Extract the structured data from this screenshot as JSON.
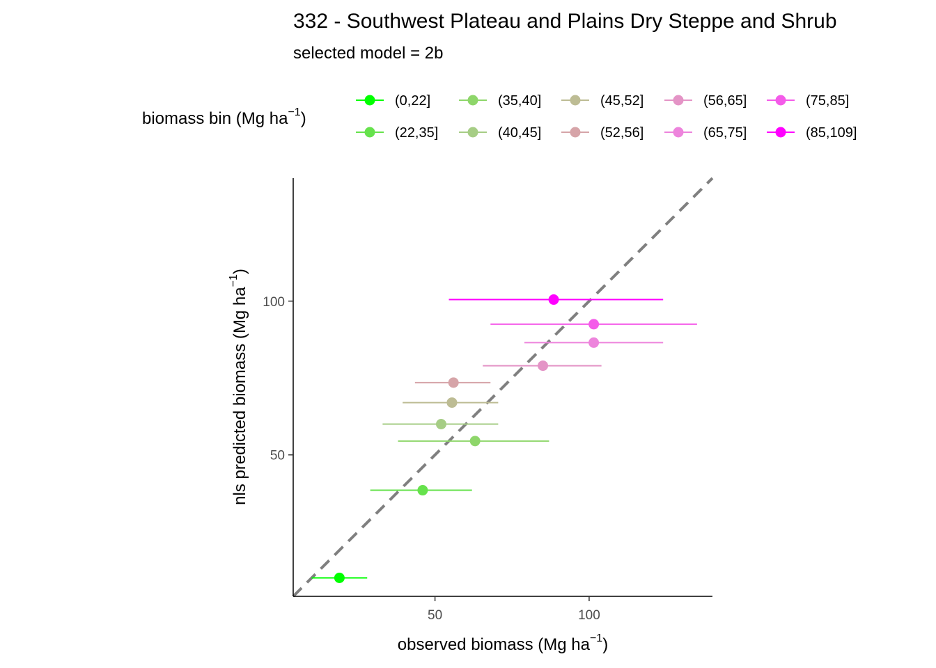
{
  "chart_data": {
    "type": "scatter",
    "title": "332 - Southwest Plateau and Plains Dry Steppe and Shrub",
    "subtitle": "selected model = 2b",
    "xlabel": "observed biomass (Mg ha",
    "ylabel": "nls predicted biomass (Mg ha",
    "unit_exponent": "−1",
    "unit_close": ")",
    "xlim": [
      4,
      140
    ],
    "ylim": [
      4,
      140
    ],
    "x_ticks": [
      50,
      100
    ],
    "y_ticks": [
      50,
      100
    ],
    "grid": false,
    "reference_line": {
      "type": "identity",
      "style": "dashed",
      "color": "#7f7f7f"
    },
    "legend": {
      "title": "biomass bin (Mg ha",
      "position": "top",
      "entries": [
        {
          "label": "(0,22]",
          "color": "#00ff00"
        },
        {
          "label": "(22,35]",
          "color": "#66e24c"
        },
        {
          "label": "(35,40]",
          "color": "#8ed66a"
        },
        {
          "label": "(40,45]",
          "color": "#a6cd85"
        },
        {
          "label": "(45,52]",
          "color": "#bdbc94"
        },
        {
          "label": "(52,56]",
          "color": "#d6a4a8"
        },
        {
          "label": "(56,65]",
          "color": "#e494c6"
        },
        {
          "label": "(65,75]",
          "color": "#ed84dc"
        },
        {
          "label": "(75,85]",
          "color": "#f45be9"
        },
        {
          "label": "(85,109]",
          "color": "#ff00ff"
        }
      ]
    },
    "series": [
      {
        "name": "(0,22]",
        "x": 19,
        "y": 10,
        "xmin": 10,
        "xmax": 28
      },
      {
        "name": "(22,35]",
        "x": 46,
        "y": 38.5,
        "xmin": 29,
        "xmax": 62
      },
      {
        "name": "(35,40]",
        "x": 63,
        "y": 54.5,
        "xmin": 38,
        "xmax": 87
      },
      {
        "name": "(40,45]",
        "x": 52,
        "y": 60,
        "xmin": 33,
        "xmax": 70.5
      },
      {
        "name": "(45,52]",
        "x": 55.5,
        "y": 67,
        "xmin": 39.5,
        "xmax": 70.5
      },
      {
        "name": "(52,56]",
        "x": 56,
        "y": 73.5,
        "xmin": 43.5,
        "xmax": 68
      },
      {
        "name": "(56,65]",
        "x": 85,
        "y": 79,
        "xmin": 65.5,
        "xmax": 104
      },
      {
        "name": "(65,75]",
        "x": 101.5,
        "y": 86.5,
        "xmin": 79,
        "xmax": 124
      },
      {
        "name": "(75,85]",
        "x": 101.5,
        "y": 92.5,
        "xmin": 68,
        "xmax": 135
      },
      {
        "name": "(85,109]",
        "x": 88.5,
        "y": 100.5,
        "xmin": 54.5,
        "xmax": 124
      }
    ]
  }
}
